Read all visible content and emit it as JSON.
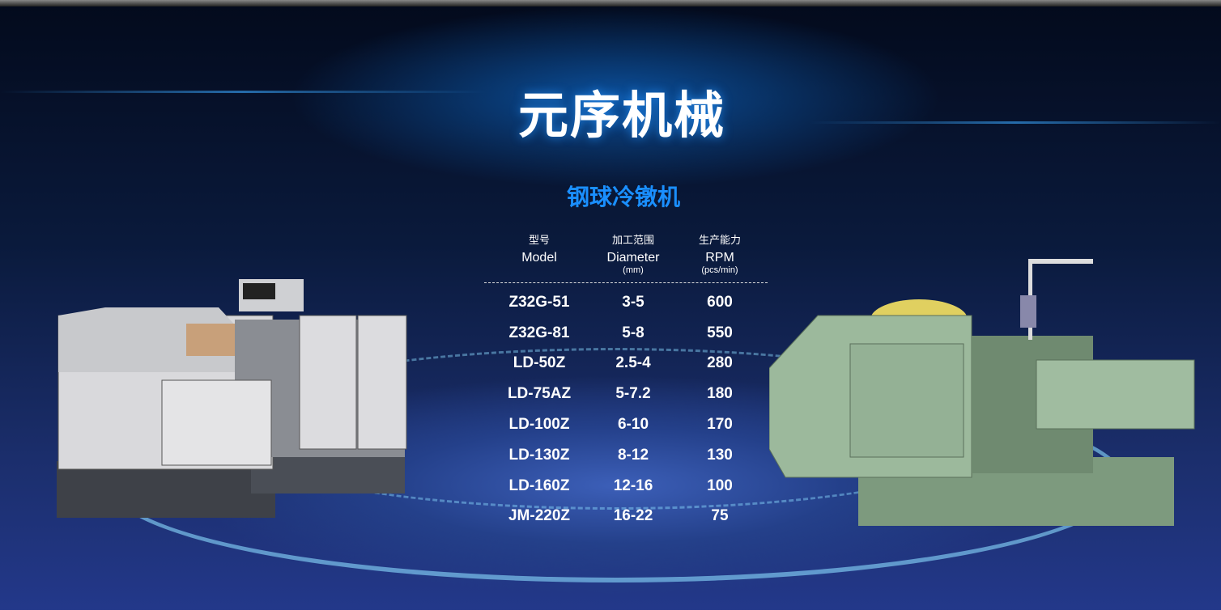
{
  "title": "元序机械",
  "subtitle": "钢球冷镦机",
  "table": {
    "headers": [
      {
        "zh": "型号",
        "en": "Model",
        "unit": ""
      },
      {
        "zh": "加工范围",
        "en": "Diameter",
        "unit": "(mm)"
      },
      {
        "zh": "生产能力",
        "en": "RPM",
        "unit": "(pcs/min)"
      }
    ],
    "rows": [
      [
        "Z32G-51",
        "3-5",
        "600"
      ],
      [
        "Z32G-81",
        "5-8",
        "550"
      ],
      [
        "LD-50Z",
        "2.5-4",
        "280"
      ],
      [
        "LD-75AZ",
        "5-7.2",
        "180"
      ],
      [
        "LD-100Z",
        "6-10",
        "170"
      ],
      [
        "LD-130Z",
        "8-12",
        "130"
      ],
      [
        "LD-160Z",
        "12-16",
        "100"
      ],
      [
        "JM-220Z",
        "16-22",
        "75"
      ]
    ]
  },
  "colors": {
    "accent": "#1a8fff"
  }
}
